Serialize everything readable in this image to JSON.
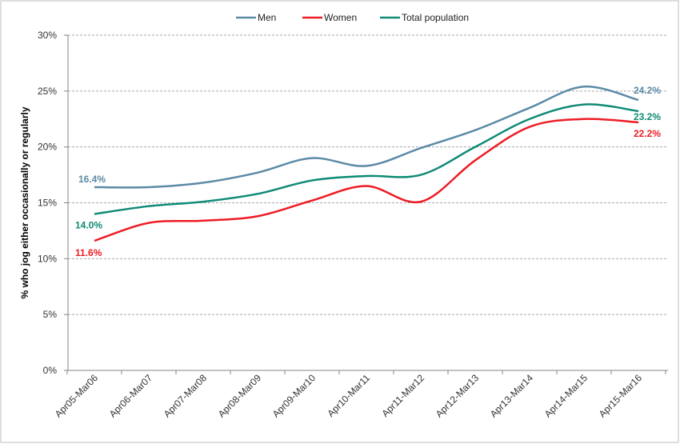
{
  "chart_data": {
    "type": "line",
    "title": "",
    "xlabel": "",
    "ylabel": "% who jog either occasionally or regularly",
    "ylim": [
      0,
      30
    ],
    "yticks": [
      "0%",
      "5%",
      "10%",
      "15%",
      "20%",
      "25%",
      "30%"
    ],
    "grid": true,
    "legend": "top",
    "categories": [
      "Apr05-Mar06",
      "Apr06-Mar07",
      "Apr07-Mar08",
      "Apr08-Mar09",
      "Apr09-Mar10",
      "Apr10-Mar11",
      "Apr11-Mar12",
      "Apr12-Mar13",
      "Apr13-Mar14",
      "Apr14-Mar15",
      "Apr15-Mar16"
    ],
    "series": [
      {
        "name": "Men",
        "color": "#5b8aa6",
        "values": [
          16.4,
          16.4,
          16.8,
          17.7,
          19.0,
          18.3,
          19.9,
          21.5,
          23.5,
          25.4,
          24.2
        ],
        "labels": {
          "first": "16.4%",
          "last": "24.2%"
        }
      },
      {
        "name": "Women",
        "color": "#ee1c25",
        "values": [
          11.6,
          13.2,
          13.4,
          13.8,
          15.2,
          16.5,
          15.1,
          18.8,
          21.8,
          22.5,
          22.2
        ],
        "labels": {
          "first": "11.6%",
          "last": "22.2%"
        }
      },
      {
        "name": "Total population",
        "color": "#0e8a76",
        "values": [
          14.0,
          14.7,
          15.1,
          15.8,
          17.0,
          17.4,
          17.5,
          20.0,
          22.5,
          23.8,
          23.2
        ],
        "labels": {
          "first": "14.0%",
          "last": "23.2%"
        }
      }
    ]
  }
}
